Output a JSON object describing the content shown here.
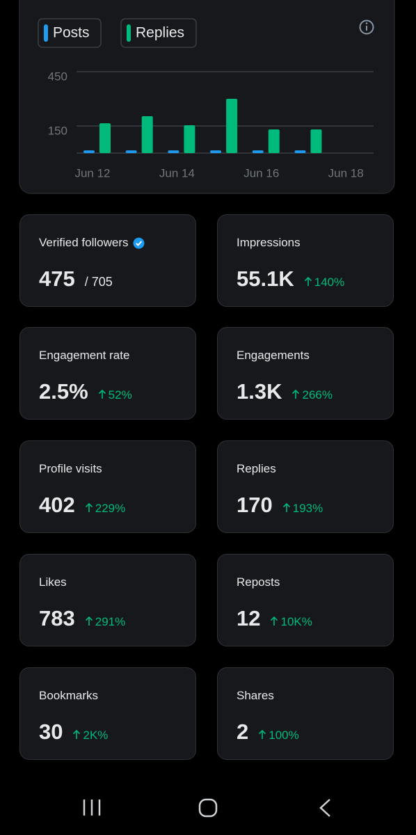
{
  "chart_data": {
    "type": "bar",
    "categories": [
      "Jun 12",
      null,
      "Jun 14",
      null,
      "Jun 16",
      null,
      "Jun 18"
    ],
    "series": [
      {
        "name": "Posts",
        "color": "#1d9bf0",
        "values": [
          15,
          15,
          15,
          15,
          15,
          15,
          null
        ]
      },
      {
        "name": "Replies",
        "color": "#00ba7c",
        "values": [
          165,
          204,
          154,
          300,
          131,
          131,
          null
        ]
      }
    ],
    "ylim": [
      0,
      450
    ],
    "yticks": [
      150,
      450
    ],
    "grid": true
  },
  "cards": [
    {
      "label": "Verified followers",
      "value": "475",
      "total": "/ 705"
    },
    {
      "label": "Impressions",
      "value": "55.1K",
      "change": "140%"
    },
    {
      "label": "Engagement rate",
      "value": "2.5%",
      "change": "52%"
    },
    {
      "label": "Engagements",
      "value": "1.3K",
      "change": "266%"
    },
    {
      "label": "Profile visits",
      "value": "402",
      "change": "229%"
    },
    {
      "label": "Replies",
      "value": "170",
      "change": "193%"
    },
    {
      "label": "Likes",
      "value": "783",
      "change": "291%"
    },
    {
      "label": "Reposts",
      "value": "12",
      "change": "10K%"
    },
    {
      "label": "Bookmarks",
      "value": "30",
      "change": "2K%"
    },
    {
      "label": "Shares",
      "value": "2",
      "change": "100%"
    }
  ]
}
